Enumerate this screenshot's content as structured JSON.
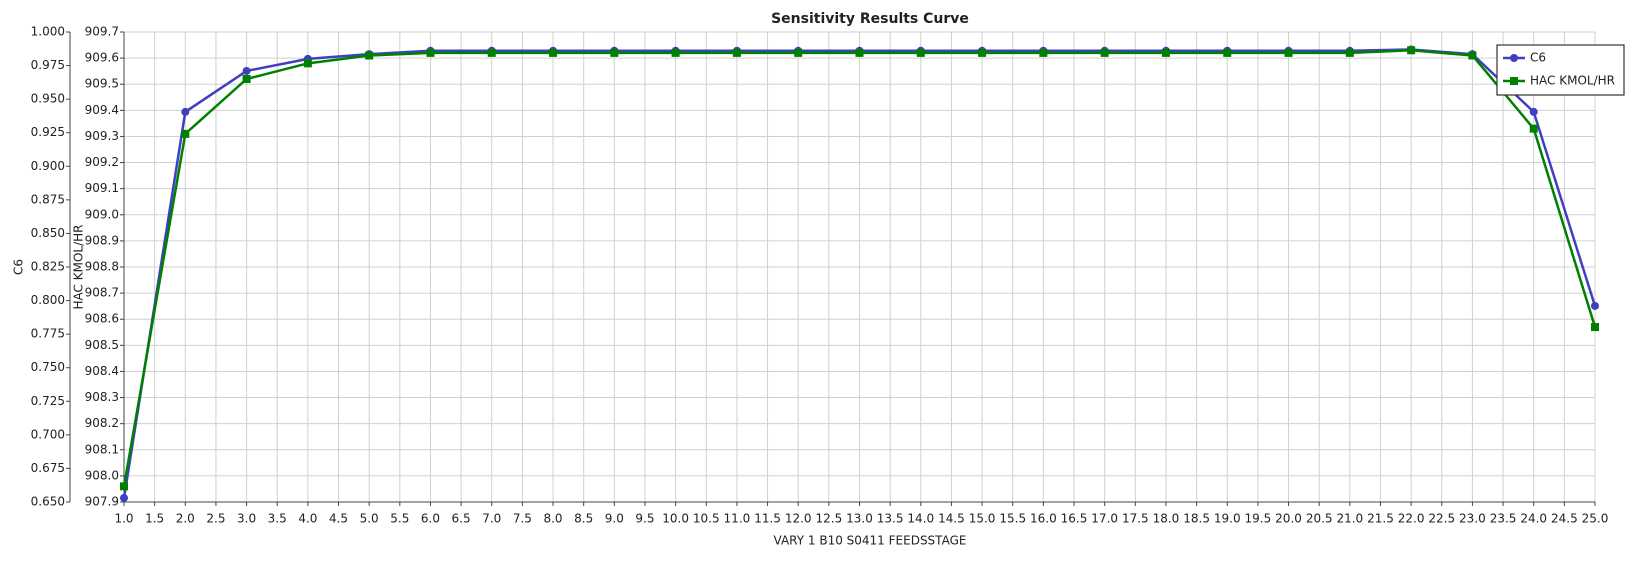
{
  "chart_data": {
    "type": "line",
    "title": "Sensitivity Results Curve",
    "x_label": "VARY   1 B10 S0411 FEEDSSTAGE",
    "y_label": "C6",
    "y2_label": "HAC KMOL/HR",
    "grid": true,
    "legend": "upper right",
    "x": [
      1,
      2,
      3,
      4,
      5,
      6,
      7,
      8,
      9,
      10,
      11,
      12,
      13,
      14,
      15,
      16,
      17,
      18,
      19,
      20,
      21,
      22,
      23,
      24,
      25
    ],
    "series": [
      {
        "name": "C6",
        "color": "#3f3fbf",
        "marker": "circle",
        "values": [
          0.653,
          0.9405,
          0.971,
          0.98,
          0.9835,
          0.986,
          0.986,
          0.986,
          0.986,
          0.986,
          0.986,
          0.986,
          0.986,
          0.986,
          0.986,
          0.986,
          0.986,
          0.986,
          0.986,
          0.986,
          0.986,
          0.987,
          0.9835,
          0.9405,
          0.796
        ]
      },
      {
        "name": "HAC KMOL/HR",
        "color": "#008000",
        "marker": "square",
        "axis": "y2",
        "values": [
          907.96,
          909.31,
          909.52,
          909.58,
          909.61,
          909.62,
          909.62,
          909.62,
          909.62,
          909.62,
          909.62,
          909.62,
          909.62,
          909.62,
          909.62,
          909.62,
          909.62,
          909.62,
          909.62,
          909.62,
          909.62,
          909.63,
          909.61,
          909.33,
          908.57
        ]
      }
    ],
    "xlim": [
      1,
      25
    ],
    "xticks": [
      {
        "value": 1,
        "label": "1.0"
      },
      1.5,
      {
        "value": 2,
        "label": "2.0"
      },
      2.5,
      {
        "value": 3,
        "label": "3.0"
      },
      3.5,
      {
        "value": 4,
        "label": "4.0"
      },
      4.5,
      {
        "value": 5,
        "label": "5.0"
      },
      5.5,
      {
        "value": 6,
        "label": "6.0"
      },
      6.5,
      {
        "value": 7,
        "label": "7.0"
      },
      7.5,
      {
        "value": 8,
        "label": "8.0"
      },
      8.5,
      {
        "value": 9,
        "label": "9.0"
      },
      9.5,
      {
        "value": 10,
        "label": "10.0"
      },
      10.5,
      {
        "value": 11,
        "label": "11.0"
      },
      11.5,
      {
        "value": 12,
        "label": "12.0"
      },
      12.5,
      {
        "value": 13,
        "label": "13.0"
      },
      13.5,
      {
        "value": 14,
        "label": "14.0"
      },
      14.5,
      {
        "value": 15,
        "label": "15.0"
      },
      15.5,
      {
        "value": 16,
        "label": "16.0"
      },
      16.5,
      {
        "value": 17,
        "label": "17.0"
      },
      17.5,
      {
        "value": 18,
        "label": "18.0"
      },
      18.5,
      {
        "value": 19,
        "label": "19.0"
      },
      19.5,
      {
        "value": 20,
        "label": "20.0"
      },
      20.5,
      {
        "value": 21,
        "label": "21.0"
      },
      21.5,
      {
        "value": 22,
        "label": "22.0"
      },
      22.5,
      {
        "value": 23,
        "label": "23.0"
      },
      23.5,
      {
        "value": 24,
        "label": "24.0"
      },
      24.5,
      {
        "value": 25,
        "label": "25.0"
      }
    ],
    "ylim": [
      0.65,
      1.0
    ],
    "yticks": [
      {
        "value": 0.65,
        "label": "0.650"
      },
      0.675,
      {
        "value": 0.7,
        "label": "0.700"
      },
      0.725,
      {
        "value": 0.75,
        "label": "0.750"
      },
      0.775,
      {
        "value": 0.8,
        "label": "0.800"
      },
      0.825,
      {
        "value": 0.85,
        "label": "0.850"
      },
      0.875,
      {
        "value": 0.9,
        "label": "0.900"
      },
      0.925,
      {
        "value": 0.95,
        "label": "0.950"
      },
      0.975,
      {
        "value": 1.0,
        "label": "1.000"
      }
    ],
    "y2lim": [
      907.9,
      909.7
    ],
    "y2ticks": [
      907.9,
      {
        "value": 908.0,
        "label": "908.0"
      },
      908.1,
      908.2,
      908.3,
      908.4,
      908.5,
      908.6,
      908.7,
      908.8,
      908.9,
      {
        "value": 909.0,
        "label": "909.0"
      },
      909.1,
      909.2,
      909.3,
      909.4,
      909.5,
      909.6,
      909.7
    ]
  }
}
